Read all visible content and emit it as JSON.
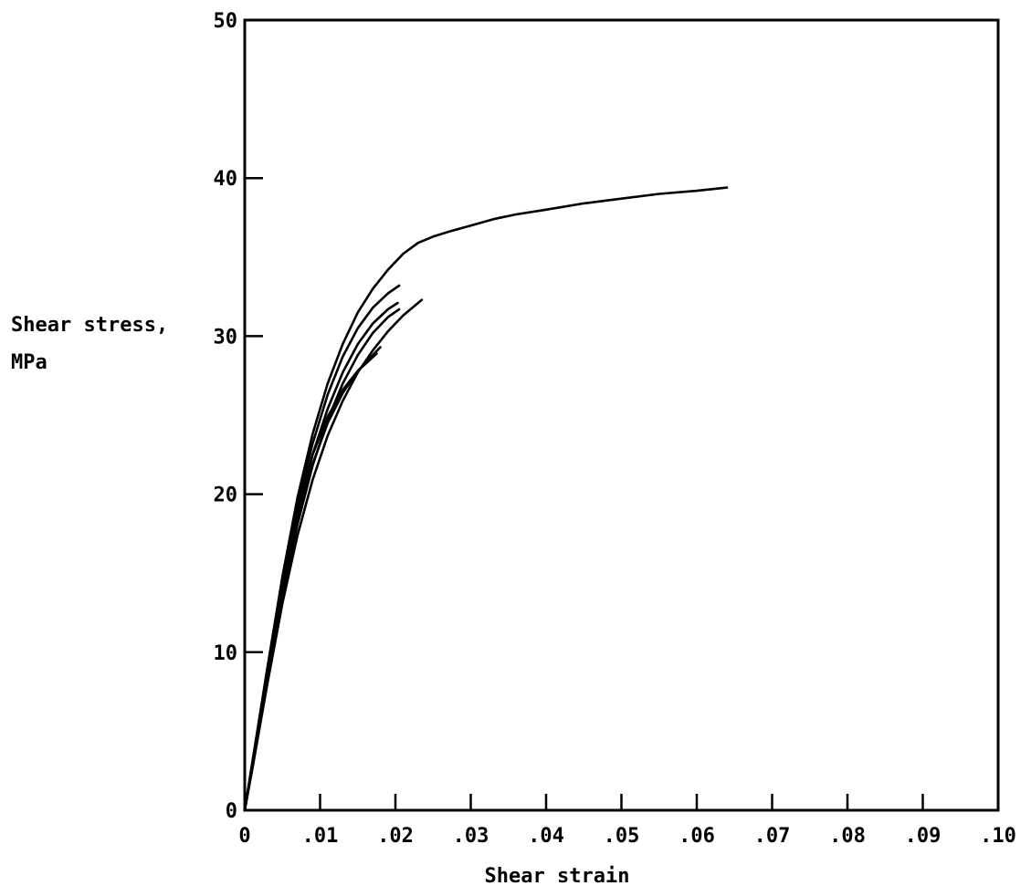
{
  "chart_data": {
    "type": "line",
    "title": "",
    "xlabel": "Shear strain",
    "ylabel_lines": [
      "Shear stress,",
      "MPa"
    ],
    "xlim": [
      0,
      0.1
    ],
    "ylim": [
      0,
      50
    ],
    "grid": false,
    "x_ticks": [
      {
        "value": 0,
        "label": "0"
      },
      {
        "value": 0.01,
        "label": ".01"
      },
      {
        "value": 0.02,
        "label": ".02"
      },
      {
        "value": 0.03,
        "label": ".03"
      },
      {
        "value": 0.04,
        "label": ".04"
      },
      {
        "value": 0.05,
        "label": ".05"
      },
      {
        "value": 0.06,
        "label": ".06"
      },
      {
        "value": 0.07,
        "label": ".07"
      },
      {
        "value": 0.08,
        "label": ".08"
      },
      {
        "value": 0.09,
        "label": ".09"
      },
      {
        "value": 0.1,
        "label": ".10"
      }
    ],
    "y_ticks": [
      {
        "value": 0,
        "label": "0"
      },
      {
        "value": 10,
        "label": "10"
      },
      {
        "value": 20,
        "label": "20"
      },
      {
        "value": 30,
        "label": "30"
      },
      {
        "value": 40,
        "label": "40"
      },
      {
        "value": 50,
        "label": "50"
      }
    ],
    "line_color": "#000000",
    "series": [
      {
        "x": [
          0,
          0.001,
          0.003,
          0.005,
          0.007,
          0.009,
          0.011,
          0.013,
          0.015,
          0.017,
          0.019,
          0.021,
          0.023,
          0.025,
          0.027,
          0.03,
          0.033,
          0.036,
          0.04,
          0.045,
          0.05,
          0.055,
          0.06,
          0.064
        ],
        "y": [
          0,
          3,
          9,
          14.8,
          19.8,
          23.8,
          27,
          29.5,
          31.5,
          33,
          34.2,
          35.2,
          35.9,
          36.3,
          36.6,
          37,
          37.4,
          37.7,
          38,
          38.4,
          38.7,
          39,
          39.2,
          39.4
        ]
      },
      {
        "x": [
          0,
          0.001,
          0.003,
          0.005,
          0.007,
          0.009,
          0.011,
          0.013,
          0.015,
          0.017,
          0.019,
          0.0205
        ],
        "y": [
          0,
          3,
          9,
          14.5,
          19.3,
          23.2,
          26.3,
          28.7,
          30.5,
          31.8,
          32.7,
          33.2
        ]
      },
      {
        "x": [
          0,
          0.001,
          0.003,
          0.005,
          0.007,
          0.009,
          0.011,
          0.013,
          0.015,
          0.017,
          0.019,
          0.0203
        ],
        "y": [
          0,
          2.8,
          8.6,
          14,
          18.7,
          22.5,
          25.4,
          27.7,
          29.5,
          30.8,
          31.7,
          32.1
        ]
      },
      {
        "x": [
          0,
          0.001,
          0.003,
          0.005,
          0.007,
          0.009,
          0.011,
          0.013,
          0.015,
          0.017,
          0.019,
          0.0205
        ],
        "y": [
          0,
          2.7,
          8.3,
          13.6,
          18.1,
          21.8,
          24.7,
          27,
          28.8,
          30.2,
          31.2,
          31.7
        ]
      },
      {
        "x": [
          0,
          0.001,
          0.003,
          0.005,
          0.007,
          0.009,
          0.011,
          0.013,
          0.015,
          0.017,
          0.019,
          0.021,
          0.0235
        ],
        "y": [
          0,
          2.6,
          8,
          13.1,
          17.4,
          20.9,
          23.7,
          25.9,
          27.7,
          29.1,
          30.3,
          31.3,
          32.3
        ]
      },
      {
        "x": [
          0,
          0.001,
          0.003,
          0.005,
          0.007,
          0.009,
          0.011,
          0.013,
          0.015,
          0.0175
        ],
        "y": [
          0,
          2.9,
          8.8,
          14.3,
          19,
          22.5,
          24.9,
          26.6,
          27.8,
          28.9
        ]
      },
      {
        "x": [
          0,
          0.001,
          0.003,
          0.005,
          0.007,
          0.009,
          0.011,
          0.013,
          0.015,
          0.018
        ],
        "y": [
          0,
          2.8,
          8.5,
          13.9,
          18.4,
          21.9,
          24.5,
          26.4,
          27.8,
          29.3
        ]
      }
    ]
  }
}
